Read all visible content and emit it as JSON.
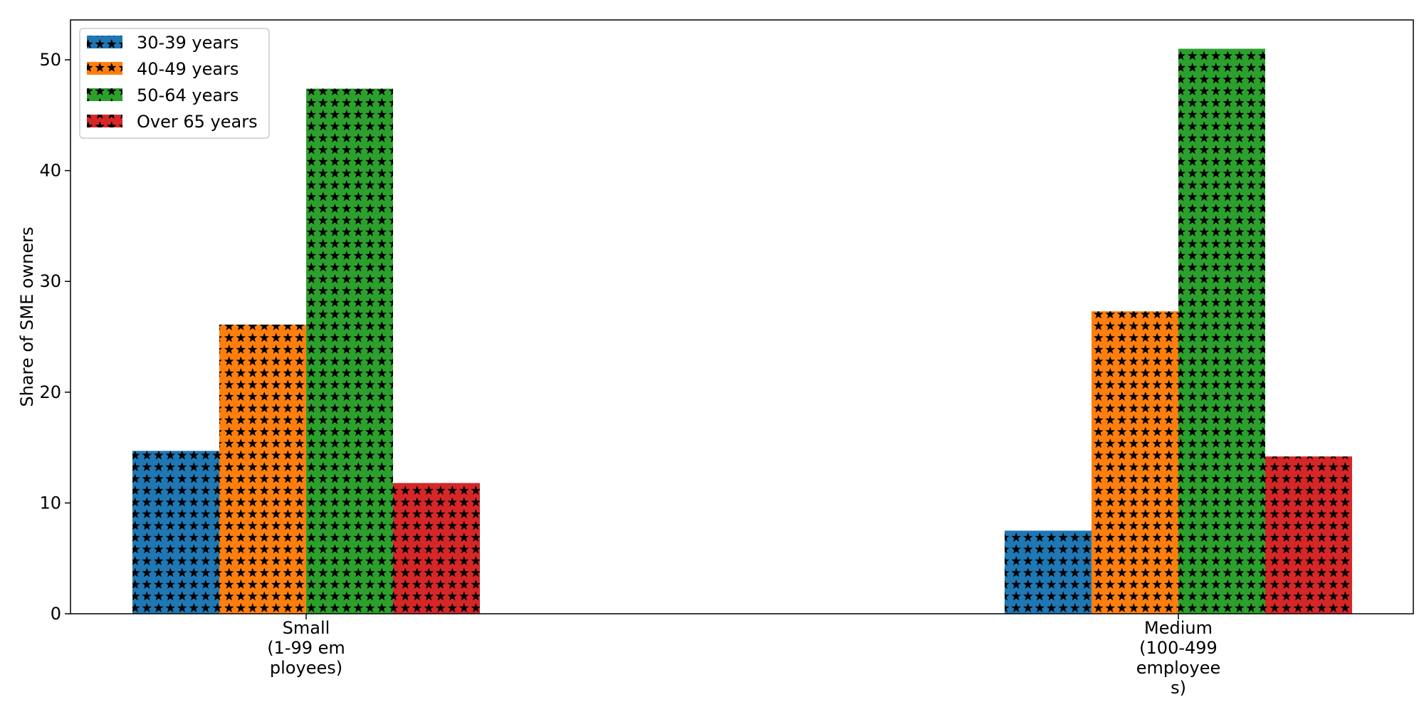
{
  "chart_data": {
    "type": "bar",
    "title": "",
    "xlabel": "",
    "ylabel": "Share of SME owners",
    "ylim": [
      0,
      53.6
    ],
    "yticks": [
      0,
      10,
      20,
      30,
      40,
      50
    ],
    "grid": false,
    "legend_position": "top-left",
    "bar_pattern": "stars",
    "categories": [
      "Small\n(1-99 em\nployees)",
      "Medium\n(100-499\nemployee\ns)"
    ],
    "series": [
      {
        "name": "30-39 years",
        "color": "#1f77b4",
        "values": [
          14.7,
          7.5
        ]
      },
      {
        "name": "40-49 years",
        "color": "#ff7f0e",
        "values": [
          26.1,
          27.3
        ]
      },
      {
        "name": "50-64 years",
        "color": "#2ca02c",
        "values": [
          47.4,
          51.0
        ]
      },
      {
        "name": "Over 65 years",
        "color": "#d62728",
        "values": [
          11.8,
          14.2
        ]
      }
    ]
  }
}
